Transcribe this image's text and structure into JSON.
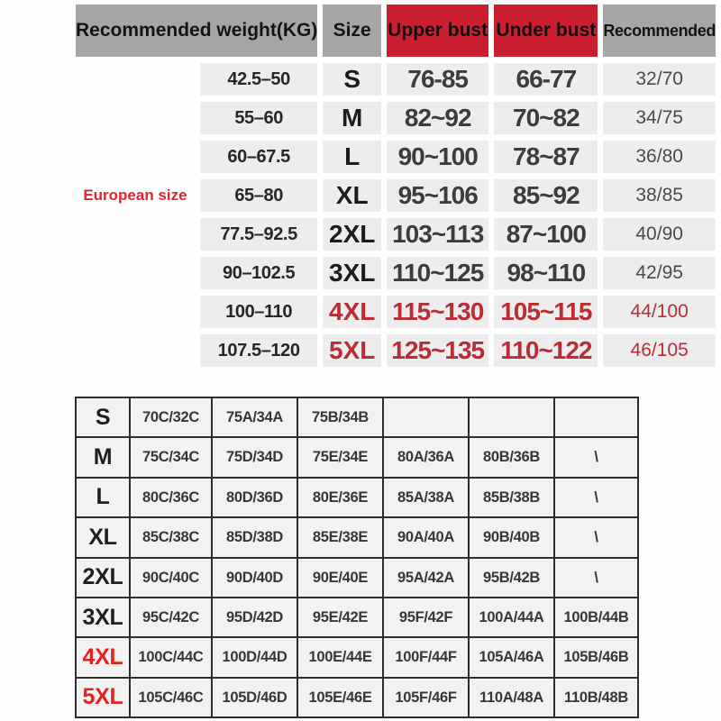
{
  "colors": {
    "header_gray": "#a6a6a6",
    "header_red": "#cb1e2f",
    "cell_bg": "#ededed",
    "red_text": "#bb2d36",
    "eu_red": "#e2242b",
    "border_dark": "#2d2d2d",
    "bottom_cell_bg": "#f2f2f2",
    "bottom_red": "#e6231b"
  },
  "chart_data": [
    {
      "type": "table",
      "title": "Recommended size by weight and bust measurement",
      "european_label": "European size",
      "columns": [
        "Recommended weight(KG)",
        "Size",
        "Upper bust",
        "Under bust",
        "Recommended"
      ],
      "rows": [
        {
          "weight": "42.5–50",
          "size": "S",
          "upper": "76-85",
          "under": "66-77",
          "recommended": "32/70",
          "highlight_red": false
        },
        {
          "weight": "55–60",
          "size": "M",
          "upper": "82~92",
          "under": "70~82",
          "recommended": "34/75",
          "highlight_red": false
        },
        {
          "weight": "60–67.5",
          "size": "L",
          "upper": "90~100",
          "under": "78~87",
          "recommended": "36/80",
          "highlight_red": false
        },
        {
          "weight": "65–80",
          "size": "XL",
          "upper": "95~106",
          "under": "85~92",
          "recommended": "38/85",
          "highlight_red": false
        },
        {
          "weight": "77.5–92.5",
          "size": "2XL",
          "upper": "103~113",
          "under": "87~100",
          "recommended": "40/90",
          "highlight_red": false
        },
        {
          "weight": "90–102.5",
          "size": "3XL",
          "upper": "110~125",
          "under": "98~110",
          "recommended": "42/95",
          "highlight_red": false
        },
        {
          "weight": "100–110",
          "size": "4XL",
          "upper": "115~130",
          "under": "105~115",
          "recommended": "44/100",
          "highlight_red": true
        },
        {
          "weight": "107.5–120",
          "size": "5XL",
          "upper": "125~135",
          "under": "110~122",
          "recommended": "46/105",
          "highlight_red": true
        }
      ]
    },
    {
      "type": "table",
      "title": "Bra size conversion chart",
      "rows": [
        {
          "size": "S",
          "cells": [
            "70C/32C",
            "75A/34A",
            "75B/34B",
            "",
            "",
            ""
          ],
          "highlight_red": false
        },
        {
          "size": "M",
          "cells": [
            "75C/34C",
            "75D/34D",
            "75E/34E",
            "80A/36A",
            "80B/36B",
            "\\"
          ],
          "highlight_red": false
        },
        {
          "size": "L",
          "cells": [
            "80C/36C",
            "80D/36D",
            "80E/36E",
            "85A/38A",
            "85B/38B",
            "\\"
          ],
          "highlight_red": false
        },
        {
          "size": "XL",
          "cells": [
            "85C/38C",
            "85D/38D",
            "85E/38E",
            "90A/40A",
            "90B/40B",
            "\\"
          ],
          "highlight_red": false
        },
        {
          "size": "2XL",
          "cells": [
            "90C/40C",
            "90D/40D",
            "90E/40E",
            "95A/42A",
            "95B/42B",
            "\\"
          ],
          "highlight_red": false
        },
        {
          "size": "3XL",
          "cells": [
            "95C/42C",
            "95D/42D",
            "95E/42E",
            "95F/42F",
            "100A/44A",
            "100B/44B"
          ],
          "highlight_red": false
        },
        {
          "size": "4XL",
          "cells": [
            "100C/44C",
            "100D/44D",
            "100E/44E",
            "100F/44F",
            "105A/46A",
            "105B/46B"
          ],
          "highlight_red": true
        },
        {
          "size": "5XL",
          "cells": [
            "105C/46C",
            "105D/46D",
            "105E/46E",
            "105F/46F",
            "110A/48A",
            "110B/48B"
          ],
          "highlight_red": true
        }
      ]
    }
  ]
}
